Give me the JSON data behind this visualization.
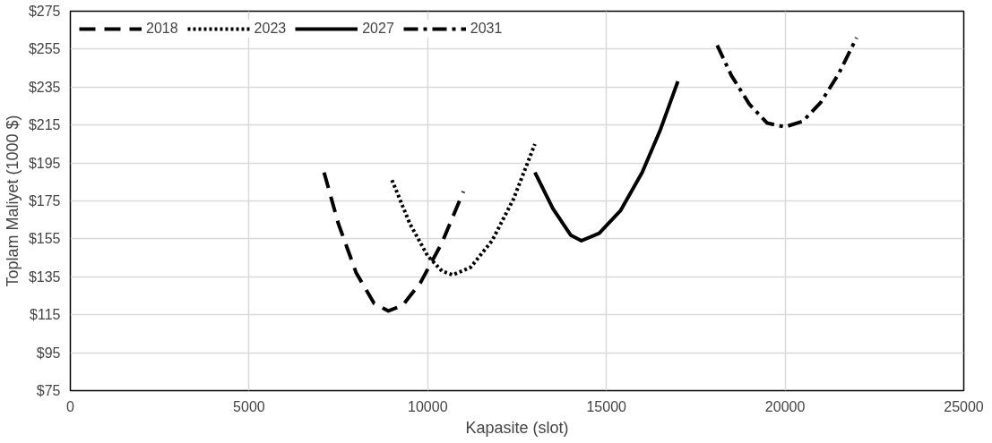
{
  "chart_data": {
    "type": "line",
    "xlabel": "Kapasite (slot)",
    "ylabel": "Toplam Maliyet (1000 $)",
    "xlim": [
      0,
      25000
    ],
    "xticks": [
      0,
      5000,
      10000,
      15000,
      20000,
      25000
    ],
    "ylim": [
      75,
      275
    ],
    "yticks": [
      {
        "value": 75,
        "label": "$75"
      },
      {
        "value": 95,
        "label": "$95"
      },
      {
        "value": 115,
        "label": "$115"
      },
      {
        "value": 135,
        "label": "$135"
      },
      {
        "value": 155,
        "label": "$155"
      },
      {
        "value": 175,
        "label": "$175"
      },
      {
        "value": 195,
        "label": "$195"
      },
      {
        "value": 215,
        "label": "$215"
      },
      {
        "value": 235,
        "label": "$235"
      },
      {
        "value": 255,
        "label": "$255"
      },
      {
        "value": 275,
        "label": "$275"
      }
    ],
    "grid": true,
    "legend": "top left",
    "marker": "none",
    "series": [
      {
        "name": "2018",
        "color": "#000000",
        "line_style": "dashed",
        "x": [
          7100,
          7500,
          8000,
          8500,
          8900,
          9300,
          9800,
          10400,
          11000
        ],
        "values": [
          190,
          163,
          137,
          121,
          117,
          120,
          132,
          153,
          180
        ]
      },
      {
        "name": "2023",
        "color": "#000000",
        "line_style": "dotted",
        "x": [
          9000,
          9500,
          10000,
          10400,
          10700,
          11200,
          11800,
          12400,
          13000
        ],
        "values": [
          186,
          163,
          146,
          138,
          136,
          140,
          154,
          176,
          205
        ]
      },
      {
        "name": "2027",
        "color": "#000000",
        "line_style": "solid",
        "x": [
          13000,
          13500,
          14000,
          14300,
          14800,
          15400,
          16000,
          16500,
          17000
        ],
        "values": [
          190,
          171,
          157,
          154,
          158,
          170,
          190,
          212,
          238
        ]
      },
      {
        "name": "2031",
        "color": "#000000",
        "line_style": "dashdot",
        "x": [
          18100,
          18500,
          19000,
          19500,
          20000,
          20500,
          21000,
          21500,
          22000
        ],
        "values": [
          257,
          241,
          226,
          216,
          214,
          217,
          227,
          242,
          261
        ]
      }
    ]
  }
}
